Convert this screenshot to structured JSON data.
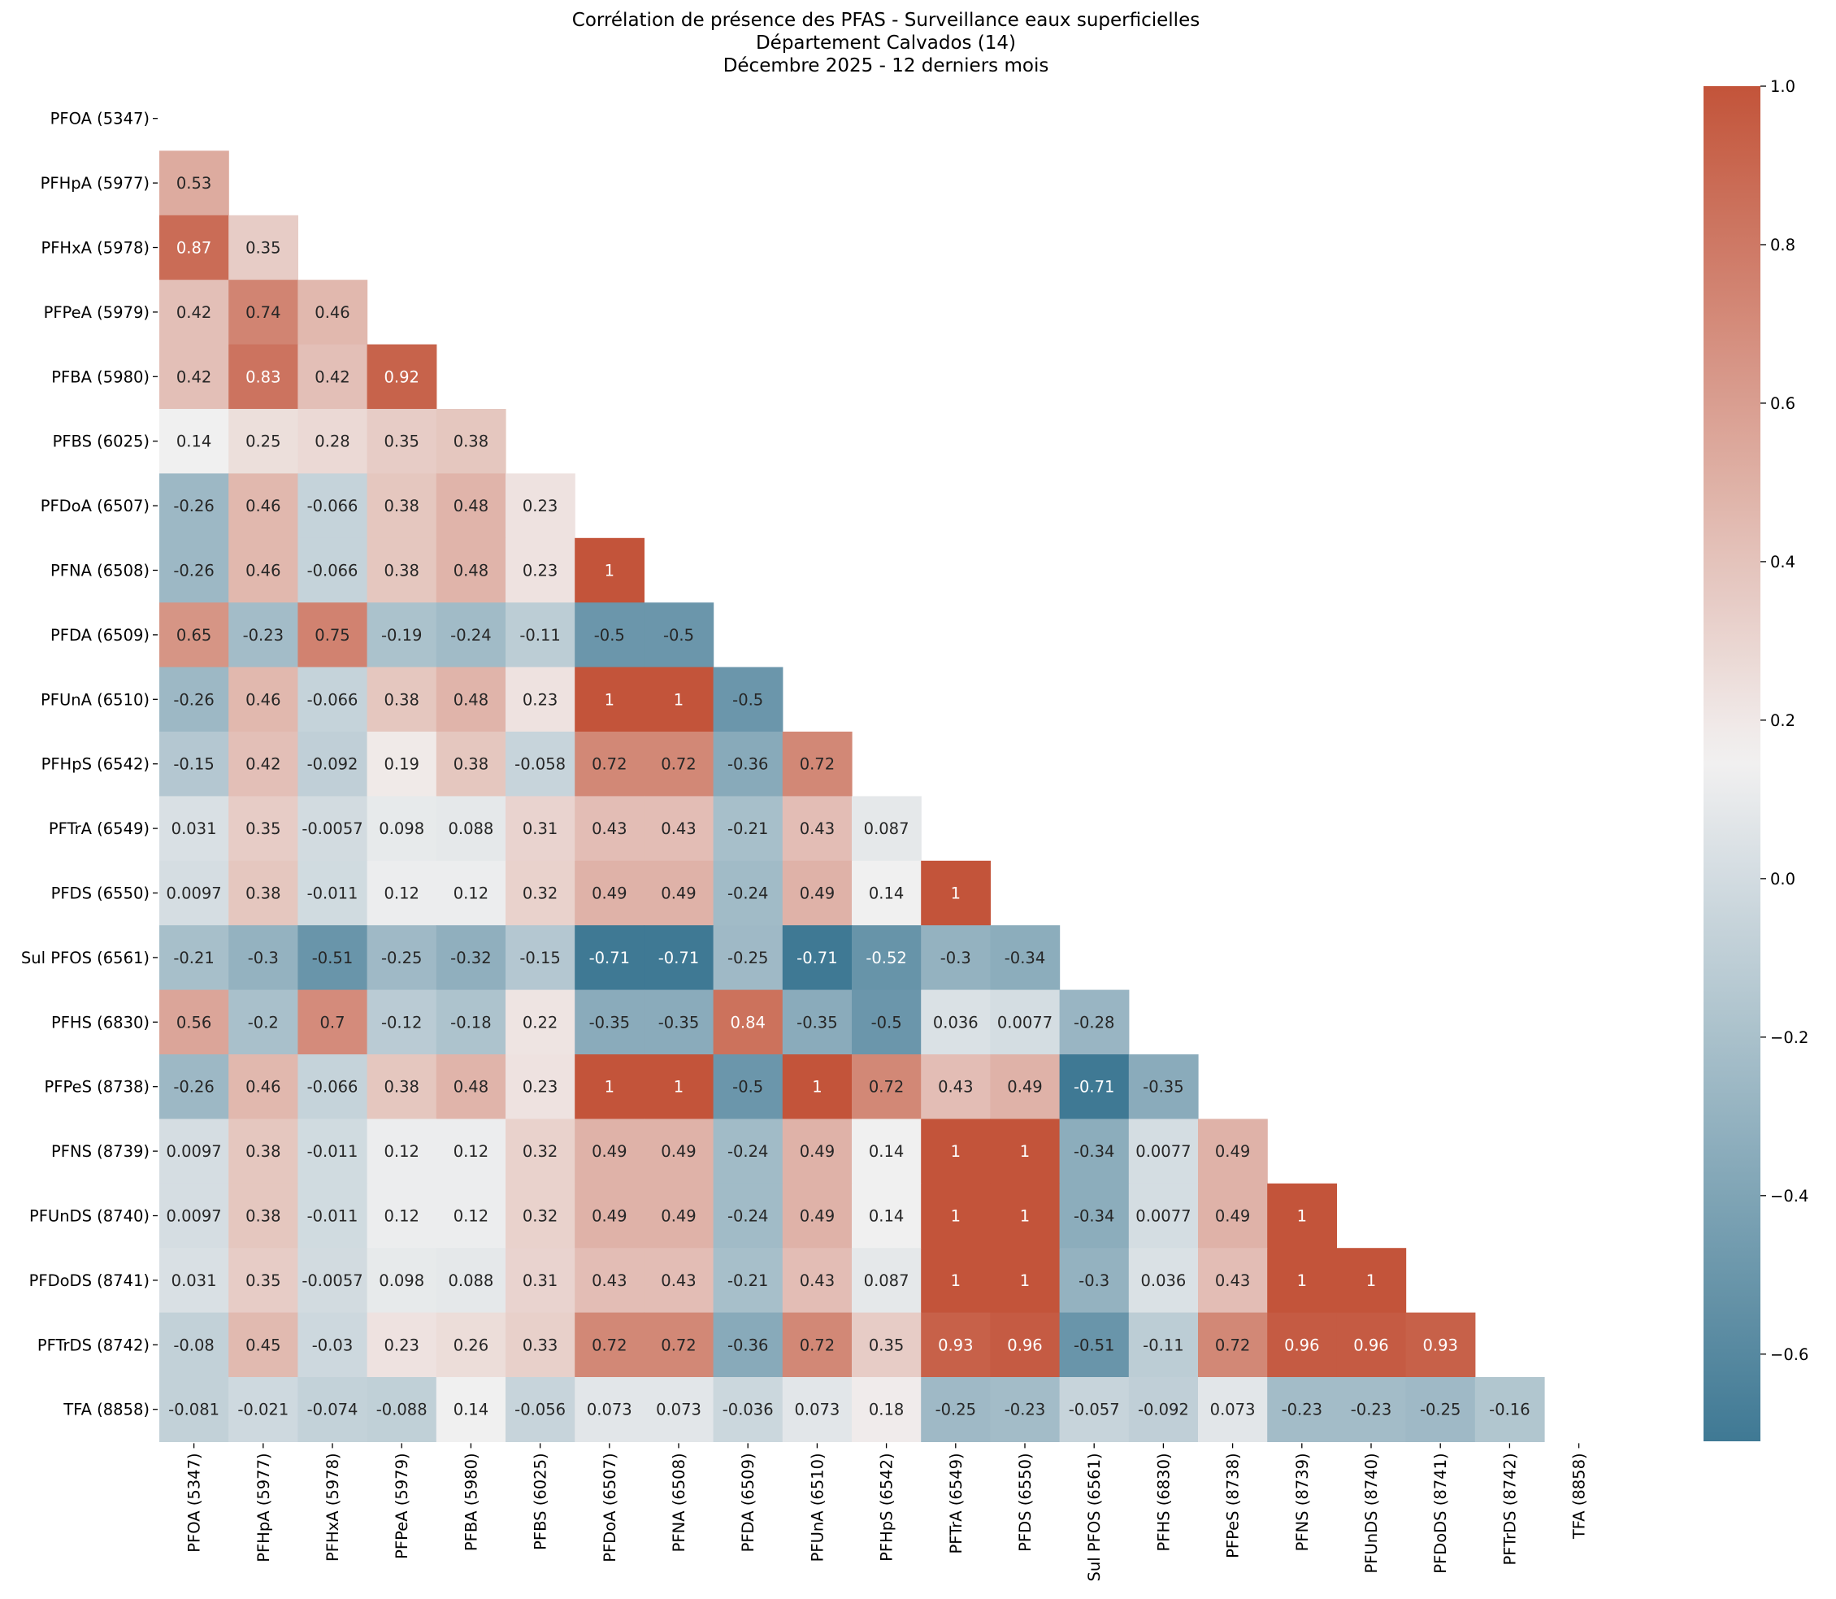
{
  "chart_data": {
    "type": "heatmap",
    "title": [
      "Corrélation de présence des PFAS - Surveillance eaux superficielles",
      "Département Calvados (14)",
      "Décembre 2025 - 12 derniers mois"
    ],
    "labels": [
      "PFOA (5347)",
      "PFHpA (5977)",
      "PFHxA (5978)",
      "PFPeA (5979)",
      "PFBA (5980)",
      "PFBS (6025)",
      "PFDoA (6507)",
      "PFNA (6508)",
      "PFDA (6509)",
      "PFUnA (6510)",
      "PFHpS (6542)",
      "PFTrA (6549)",
      "PFDS (6550)",
      "Sul PFOS (6561)",
      "PFHS (6830)",
      "PFPeS (8738)",
      "PFNS (8739)",
      "PFUnDS (8740)",
      "PFDoDS (8741)",
      "PFTrDS (8742)",
      "TFA (8858)"
    ],
    "matrix": [
      [],
      [
        "0.53"
      ],
      [
        "0.87",
        "0.35"
      ],
      [
        "0.42",
        "0.74",
        "0.46"
      ],
      [
        "0.42",
        "0.83",
        "0.42",
        "0.92"
      ],
      [
        "0.14",
        "0.25",
        "0.28",
        "0.35",
        "0.38"
      ],
      [
        "-0.26",
        "0.46",
        "-0.066",
        "0.38",
        "0.48",
        "0.23"
      ],
      [
        "-0.26",
        "0.46",
        "-0.066",
        "0.38",
        "0.48",
        "0.23",
        "1"
      ],
      [
        "0.65",
        "-0.23",
        "0.75",
        "-0.19",
        "-0.24",
        "-0.11",
        "-0.5",
        "-0.5"
      ],
      [
        "-0.26",
        "0.46",
        "-0.066",
        "0.38",
        "0.48",
        "0.23",
        "1",
        "1",
        "-0.5"
      ],
      [
        "-0.15",
        "0.42",
        "-0.092",
        "0.19",
        "0.38",
        "-0.058",
        "0.72",
        "0.72",
        "-0.36",
        "0.72"
      ],
      [
        "0.031",
        "0.35",
        "-0.0057",
        "0.098",
        "0.088",
        "0.31",
        "0.43",
        "0.43",
        "-0.21",
        "0.43",
        "0.087"
      ],
      [
        "0.0097",
        "0.38",
        "-0.011",
        "0.12",
        "0.12",
        "0.32",
        "0.49",
        "0.49",
        "-0.24",
        "0.49",
        "0.14",
        "1"
      ],
      [
        "-0.21",
        "-0.3",
        "-0.51",
        "-0.25",
        "-0.32",
        "-0.15",
        "-0.71",
        "-0.71",
        "-0.25",
        "-0.71",
        "-0.52",
        "-0.3",
        "-0.34"
      ],
      [
        "0.56",
        "-0.2",
        "0.7",
        "-0.12",
        "-0.18",
        "0.22",
        "-0.35",
        "-0.35",
        "0.84",
        "-0.35",
        "-0.5",
        "0.036",
        "0.0077",
        "-0.28"
      ],
      [
        "-0.26",
        "0.46",
        "-0.066",
        "0.38",
        "0.48",
        "0.23",
        "1",
        "1",
        "-0.5",
        "1",
        "0.72",
        "0.43",
        "0.49",
        "-0.71",
        "-0.35"
      ],
      [
        "0.0097",
        "0.38",
        "-0.011",
        "0.12",
        "0.12",
        "0.32",
        "0.49",
        "0.49",
        "-0.24",
        "0.49",
        "0.14",
        "1",
        "1",
        "-0.34",
        "0.0077",
        "0.49"
      ],
      [
        "0.0097",
        "0.38",
        "-0.011",
        "0.12",
        "0.12",
        "0.32",
        "0.49",
        "0.49",
        "-0.24",
        "0.49",
        "0.14",
        "1",
        "1",
        "-0.34",
        "0.0077",
        "0.49",
        "1"
      ],
      [
        "0.031",
        "0.35",
        "-0.0057",
        "0.098",
        "0.088",
        "0.31",
        "0.43",
        "0.43",
        "-0.21",
        "0.43",
        "0.087",
        "1",
        "1",
        "-0.3",
        "0.036",
        "0.43",
        "1",
        "1"
      ],
      [
        "-0.08",
        "0.45",
        "-0.03",
        "0.23",
        "0.26",
        "0.33",
        "0.72",
        "0.72",
        "-0.36",
        "0.72",
        "0.35",
        "0.93",
        "0.96",
        "-0.51",
        "-0.11",
        "0.72",
        "0.96",
        "0.96",
        "0.93"
      ],
      [
        "-0.081",
        "-0.021",
        "-0.074",
        "-0.088",
        "0.14",
        "-0.056",
        "0.073",
        "0.073",
        "-0.036",
        "0.073",
        "0.18",
        "-0.25",
        "-0.23",
        "-0.057",
        "-0.092",
        "0.073",
        "-0.23",
        "-0.23",
        "-0.25",
        "-0.16"
      ]
    ],
    "colorbar": {
      "vmin": -0.71,
      "vmax": 1.0,
      "ticks": [
        -0.6,
        -0.4,
        -0.2,
        0.0,
        0.2,
        0.4,
        0.6,
        0.8,
        1.0
      ],
      "tick_labels": [
        "−0.6",
        "−0.4",
        "−0.2",
        "0.0",
        "0.2",
        "0.4",
        "0.6",
        "0.8",
        "1.0"
      ],
      "colormap": "diverging blue-white-red",
      "colors": {
        "negative": "#3f7994",
        "center": "#f2f1f1",
        "positive": "#c3543a"
      },
      "center_value": 0.15
    },
    "mask": "upper triangle including diagonal"
  }
}
